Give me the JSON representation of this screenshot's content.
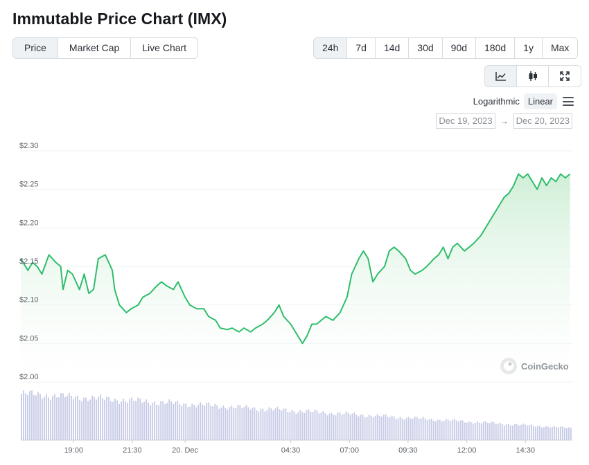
{
  "page": {
    "title": "Immutable Price Chart (IMX)"
  },
  "tabs": [
    {
      "label": "Price",
      "active": true
    },
    {
      "label": "Market Cap",
      "active": false
    },
    {
      "label": "Live Chart",
      "active": false
    }
  ],
  "ranges": [
    {
      "label": "24h",
      "active": true
    },
    {
      "label": "7d",
      "active": false
    },
    {
      "label": "14d",
      "active": false
    },
    {
      "label": "30d",
      "active": false
    },
    {
      "label": "90d",
      "active": false
    },
    {
      "label": "180d",
      "active": false
    },
    {
      "label": "1y",
      "active": false
    },
    {
      "label": "Max",
      "active": false
    }
  ],
  "chart_types": [
    {
      "icon": "line-chart-icon",
      "active": true
    },
    {
      "icon": "candlestick-icon",
      "active": false
    },
    {
      "icon": "expand-icon",
      "active": false
    }
  ],
  "scale": {
    "log_label": "Logarithmic",
    "linear_label": "Linear",
    "selected": "Linear"
  },
  "dates": {
    "from": "Dec 19, 2023",
    "arrow": "→",
    "to": "Dec 20, 2023"
  },
  "watermark": "CoinGecko",
  "colors": {
    "line": "#2ebd6b",
    "fill_top": "#d3f0da",
    "volume": "#c7cbe6",
    "grid": "#eef0f2"
  },
  "chart_data": {
    "type": "area",
    "title": "",
    "xlabel": "",
    "ylabel": "",
    "ylim": [
      2.0,
      2.3
    ],
    "grid": true,
    "y_tick_values": [
      2.0,
      2.05,
      2.1,
      2.15,
      2.2,
      2.25,
      2.3
    ],
    "y_tick_labels": [
      "$2.00",
      "$2.05",
      "$2.10",
      "$2.15",
      "$2.20",
      "$2.25",
      "$2.30"
    ],
    "x_ticks": [
      {
        "t": 2.25,
        "label": "19:00"
      },
      {
        "t": 4.75,
        "label": "21:30"
      },
      {
        "t": 7.0,
        "label": "20. Dec"
      },
      {
        "t": 11.5,
        "label": "04:30"
      },
      {
        "t": 14.0,
        "label": "07:00"
      },
      {
        "t": 16.5,
        "label": "09:30"
      },
      {
        "t": 19.0,
        "label": "12:00"
      },
      {
        "t": 21.5,
        "label": "14:30"
      }
    ],
    "x_range": [
      0,
      23.5
    ],
    "price_series": {
      "name": "Price",
      "t": [
        0,
        0.3,
        0.5,
        0.7,
        0.9,
        1.2,
        1.5,
        1.7,
        1.8,
        2.0,
        2.2,
        2.5,
        2.7,
        2.9,
        3.1,
        3.3,
        3.6,
        3.9,
        4.0,
        4.2,
        4.5,
        4.7,
        5.0,
        5.2,
        5.5,
        5.8,
        6.0,
        6.2,
        6.5,
        6.7,
        7.0,
        7.2,
        7.5,
        7.8,
        8.0,
        8.3,
        8.5,
        8.8,
        9.0,
        9.3,
        9.5,
        9.8,
        10.0,
        10.3,
        10.5,
        10.8,
        11.0,
        11.2,
        11.5,
        11.7,
        12.0,
        12.2,
        12.4,
        12.6,
        12.8,
        13.0,
        13.3,
        13.6,
        13.9,
        14.1,
        14.4,
        14.6,
        14.8,
        15.0,
        15.2,
        15.5,
        15.7,
        15.9,
        16.1,
        16.4,
        16.6,
        16.8,
        17.1,
        17.3,
        17.6,
        17.8,
        18.0,
        18.2,
        18.4,
        18.6,
        18.9,
        19.1,
        19.3,
        19.6,
        19.8,
        20.0,
        20.2,
        20.4,
        20.6,
        20.8,
        21.0,
        21.2,
        21.4,
        21.6,
        21.8,
        22.0,
        22.2,
        22.4,
        22.6,
        22.8,
        23.0,
        23.2,
        23.4
      ],
      "values": [
        2.16,
        2.145,
        2.155,
        2.15,
        2.14,
        2.165,
        2.155,
        2.15,
        2.12,
        2.145,
        2.14,
        2.12,
        2.14,
        2.115,
        2.12,
        2.16,
        2.165,
        2.145,
        2.12,
        2.1,
        2.09,
        2.095,
        2.1,
        2.11,
        2.115,
        2.125,
        2.13,
        2.125,
        2.12,
        2.13,
        2.11,
        2.1,
        2.095,
        2.095,
        2.085,
        2.08,
        2.07,
        2.068,
        2.07,
        2.065,
        2.07,
        2.065,
        2.07,
        2.075,
        2.08,
        2.09,
        2.1,
        2.085,
        2.075,
        2.065,
        2.05,
        2.06,
        2.075,
        2.075,
        2.08,
        2.085,
        2.08,
        2.09,
        2.11,
        2.14,
        2.16,
        2.17,
        2.16,
        2.13,
        2.14,
        2.15,
        2.17,
        2.175,
        2.17,
        2.16,
        2.145,
        2.14,
        2.145,
        2.15,
        2.16,
        2.165,
        2.175,
        2.16,
        2.175,
        2.18,
        2.17,
        2.175,
        2.18,
        2.19,
        2.2,
        2.21,
        2.22,
        2.23,
        2.24,
        2.245,
        2.255,
        2.27,
        2.265,
        2.27,
        2.26,
        2.25,
        2.265,
        2.255,
        2.265,
        2.26,
        2.27,
        2.265,
        2.27
      ]
    },
    "volume_series": {
      "name": "Volume",
      "relative_start": 1.0,
      "relative_end": 0.26
    }
  }
}
